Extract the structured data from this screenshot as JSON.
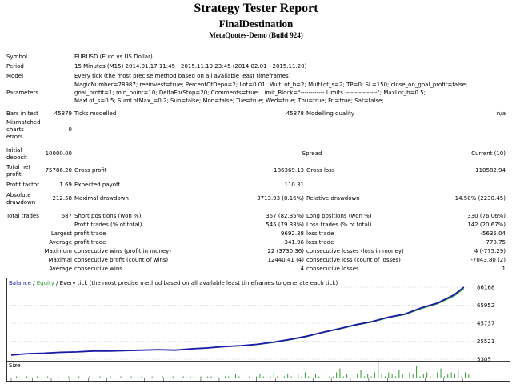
{
  "report": {
    "title": "Strategy Tester Report",
    "ea_name": "FinalDestination",
    "server": "MetaQuotes-Demo (Build 924)"
  },
  "info": {
    "symbol_label": "Symbol",
    "symbol": "EURUSD (Euro vs US Dollar)",
    "period_label": "Period",
    "period": "15 Minutes (M15) 2014.01.17 11:45 - 2015.11.19 23:45 (2014.02.01 - 2015.11.20)",
    "model_label": "Model",
    "model": "Every tick (the most precise method based on all available least timeframes)",
    "parameters_label": "Parameters",
    "parameters": [
      "MagicNumber=78987; reeinvest=true; PercentOfDepo=2; Lot=0.01; MultLot_b=2; MultLot_s=2; TP=0; SL=150; close_on_goal_profit=false;",
      "goal_profit=1; min_point=10; DeltaForStop=20; Comments=true; Limit_Block=\"------------ Limits ----------------\"; MaxLot_b=0.5;",
      "MaxLot_s=0.5; SumLotMax_=0.2; Sun=false; Mon=false; Tue=true; Wed=true; Thu=true; Fri=true; Sat=false;"
    ],
    "bars_label": "Bars in test",
    "bars": "45879",
    "ticks_label": "Ticks modelled",
    "ticks": "45878",
    "quality_label": "Modelling quality",
    "quality": "n/a",
    "mismatched_label": [
      "Mismatched",
      "charts",
      "errors"
    ],
    "mismatched": "0"
  },
  "results": {
    "initial_deposit_label": [
      "Initial",
      "deposit"
    ],
    "initial_deposit": "10000.00",
    "spread_label": "Spread",
    "spread": "Current (10)",
    "net_profit_label": [
      "Total net",
      "profit"
    ],
    "net_profit": "75786.20",
    "gross_profit_label": "Gross profit",
    "gross_profit": "186369.13",
    "gross_loss_label": "Gross loss",
    "gross_loss": "-110582.94",
    "profit_factor_label": "Profit factor",
    "profit_factor": "1.69",
    "expected_payoff_label": "Expected payoff",
    "expected_payoff": "110.31",
    "abs_drawdown_label": [
      "Absolute",
      "drawdown"
    ],
    "abs_drawdown": "212.58",
    "max_drawdown_label": "Maximal drawdown",
    "max_drawdown": "3713.93 (8.16%)",
    "rel_drawdown_label": "Relative drawdown",
    "rel_drawdown": "14.50% (2230.45)",
    "total_trades_label": "Total trades",
    "total_trades": "687",
    "short_label": "Short positions (won %)",
    "short": "357 (82.35%)",
    "long_label": "Long positions (won %)",
    "long": "330 (76.06%)",
    "profit_trades_label": "Profit trades (% of total)",
    "profit_trades": "545 (79.33%)",
    "loss_trades_label": "Loss trades (% of total)",
    "loss_trades": "142 (20.67%)",
    "largest_label": "Largest",
    "largest_profit_label": "profit trade",
    "largest_profit": "9692.38",
    "largest_loss_label": "loss trade",
    "largest_loss": "-5635.04",
    "average_label": "Average",
    "average_profit_label": "profit trade",
    "average_profit": "341.96",
    "average_loss_label": "loss trade",
    "average_loss": "-778.75",
    "maximum_label": "Maximum",
    "max_cons_wins_label": "consecutive wins (profit in money)",
    "max_cons_wins": "22 (3730.36)",
    "max_cons_losses_label": "consecutive losses (loss in money)",
    "max_cons_losses": "4 (-775.29)",
    "maximal_label": "Maximal",
    "maximal_profit_label": "consecutive profit (count of wins)",
    "maximal_profit": "12440.41 (4)",
    "maximal_loss_label": "consecutive loss (count of losses)",
    "maximal_loss": "-7043.80 (2)",
    "average2_label": "Average",
    "avg_cons_wins_label": "consecutive wins",
    "avg_cons_wins": "4",
    "avg_cons_losses_label": "consecutive losses",
    "avg_cons_losses": "1"
  },
  "chart_header": {
    "balance": "Balance",
    "slash": " / ",
    "equity": "Equity",
    "rest": " / Every tick (the most precise method based on all available least timeframes to generate each tick)"
  },
  "chart_data": {
    "type": "line",
    "series": [
      {
        "name": "Balance",
        "x": [
          0,
          25,
          50,
          75,
          100,
          125,
          150,
          175,
          200,
          225,
          250,
          275,
          300,
          325,
          350,
          375,
          400,
          425,
          450,
          475,
          500,
          525,
          550,
          575,
          600,
          625,
          650,
          675,
          690
        ],
        "y": [
          10000,
          11500,
          12000,
          13000,
          13500,
          14500,
          14500,
          15000,
          15500,
          16000,
          15500,
          17000,
          18000,
          19500,
          20500,
          22000,
          24500,
          27500,
          31000,
          35500,
          39500,
          44000,
          47500,
          52500,
          56000,
          63000,
          68500,
          77500,
          86168
        ]
      },
      {
        "name": "Equity",
        "x": [
          0,
          25,
          50,
          75,
          100,
          125,
          150,
          175,
          200,
          225,
          250,
          275,
          300,
          325,
          350,
          375,
          400,
          425,
          450,
          475,
          500,
          525,
          550,
          575,
          600,
          625,
          650,
          675,
          690
        ],
        "y": [
          10000,
          11300,
          11800,
          12700,
          13300,
          14200,
          14300,
          14700,
          15300,
          15800,
          15300,
          16700,
          17600,
          19200,
          20100,
          21600,
          24000,
          27000,
          30500,
          35000,
          39000,
          43300,
          47000,
          51800,
          55300,
          62000,
          67500,
          76000,
          84500
        ]
      }
    ],
    "y_ticks": [
      "86168",
      "65952",
      "45737",
      "25521",
      "5305"
    ],
    "x_ticks": [
      "0",
      "32",
      "61",
      "89",
      "118",
      "146",
      "175",
      "203",
      "232",
      "260",
      "289",
      "317",
      "346",
      "374",
      "403",
      "431",
      "460",
      "488",
      "517",
      "545",
      "574",
      "602",
      "631",
      "659",
      "688"
    ],
    "ylim": [
      5305,
      86168
    ],
    "xlim": [
      0,
      700
    ],
    "size_label": "Size",
    "size_values": [
      0,
      1,
      0,
      0,
      1,
      0,
      0,
      1,
      0,
      0,
      1,
      0,
      0,
      1,
      0,
      0,
      1,
      0,
      0,
      1,
      0,
      0,
      1,
      0,
      0,
      1,
      0,
      0,
      1,
      0,
      0,
      1,
      0,
      0,
      1,
      0,
      0,
      1,
      0,
      0,
      1,
      0,
      0,
      1,
      0,
      0,
      1,
      0,
      0,
      1,
      0,
      1,
      1,
      0,
      1,
      0,
      1,
      1,
      0,
      1,
      0,
      1,
      1,
      0,
      2,
      1,
      0,
      1,
      1,
      0,
      1,
      2,
      1,
      0,
      1,
      3,
      1,
      0,
      1,
      2,
      1,
      0,
      2,
      1,
      3,
      1,
      0,
      2,
      1,
      0,
      2,
      1,
      1,
      3,
      5,
      1,
      2,
      0,
      1,
      2,
      4,
      1,
      2,
      1,
      3,
      8,
      2,
      1,
      3,
      2,
      1,
      4,
      2,
      1,
      3,
      2,
      6,
      1,
      2,
      3,
      1,
      2,
      3,
      5,
      1,
      2,
      3,
      2,
      4,
      1,
      3,
      2
    ]
  }
}
